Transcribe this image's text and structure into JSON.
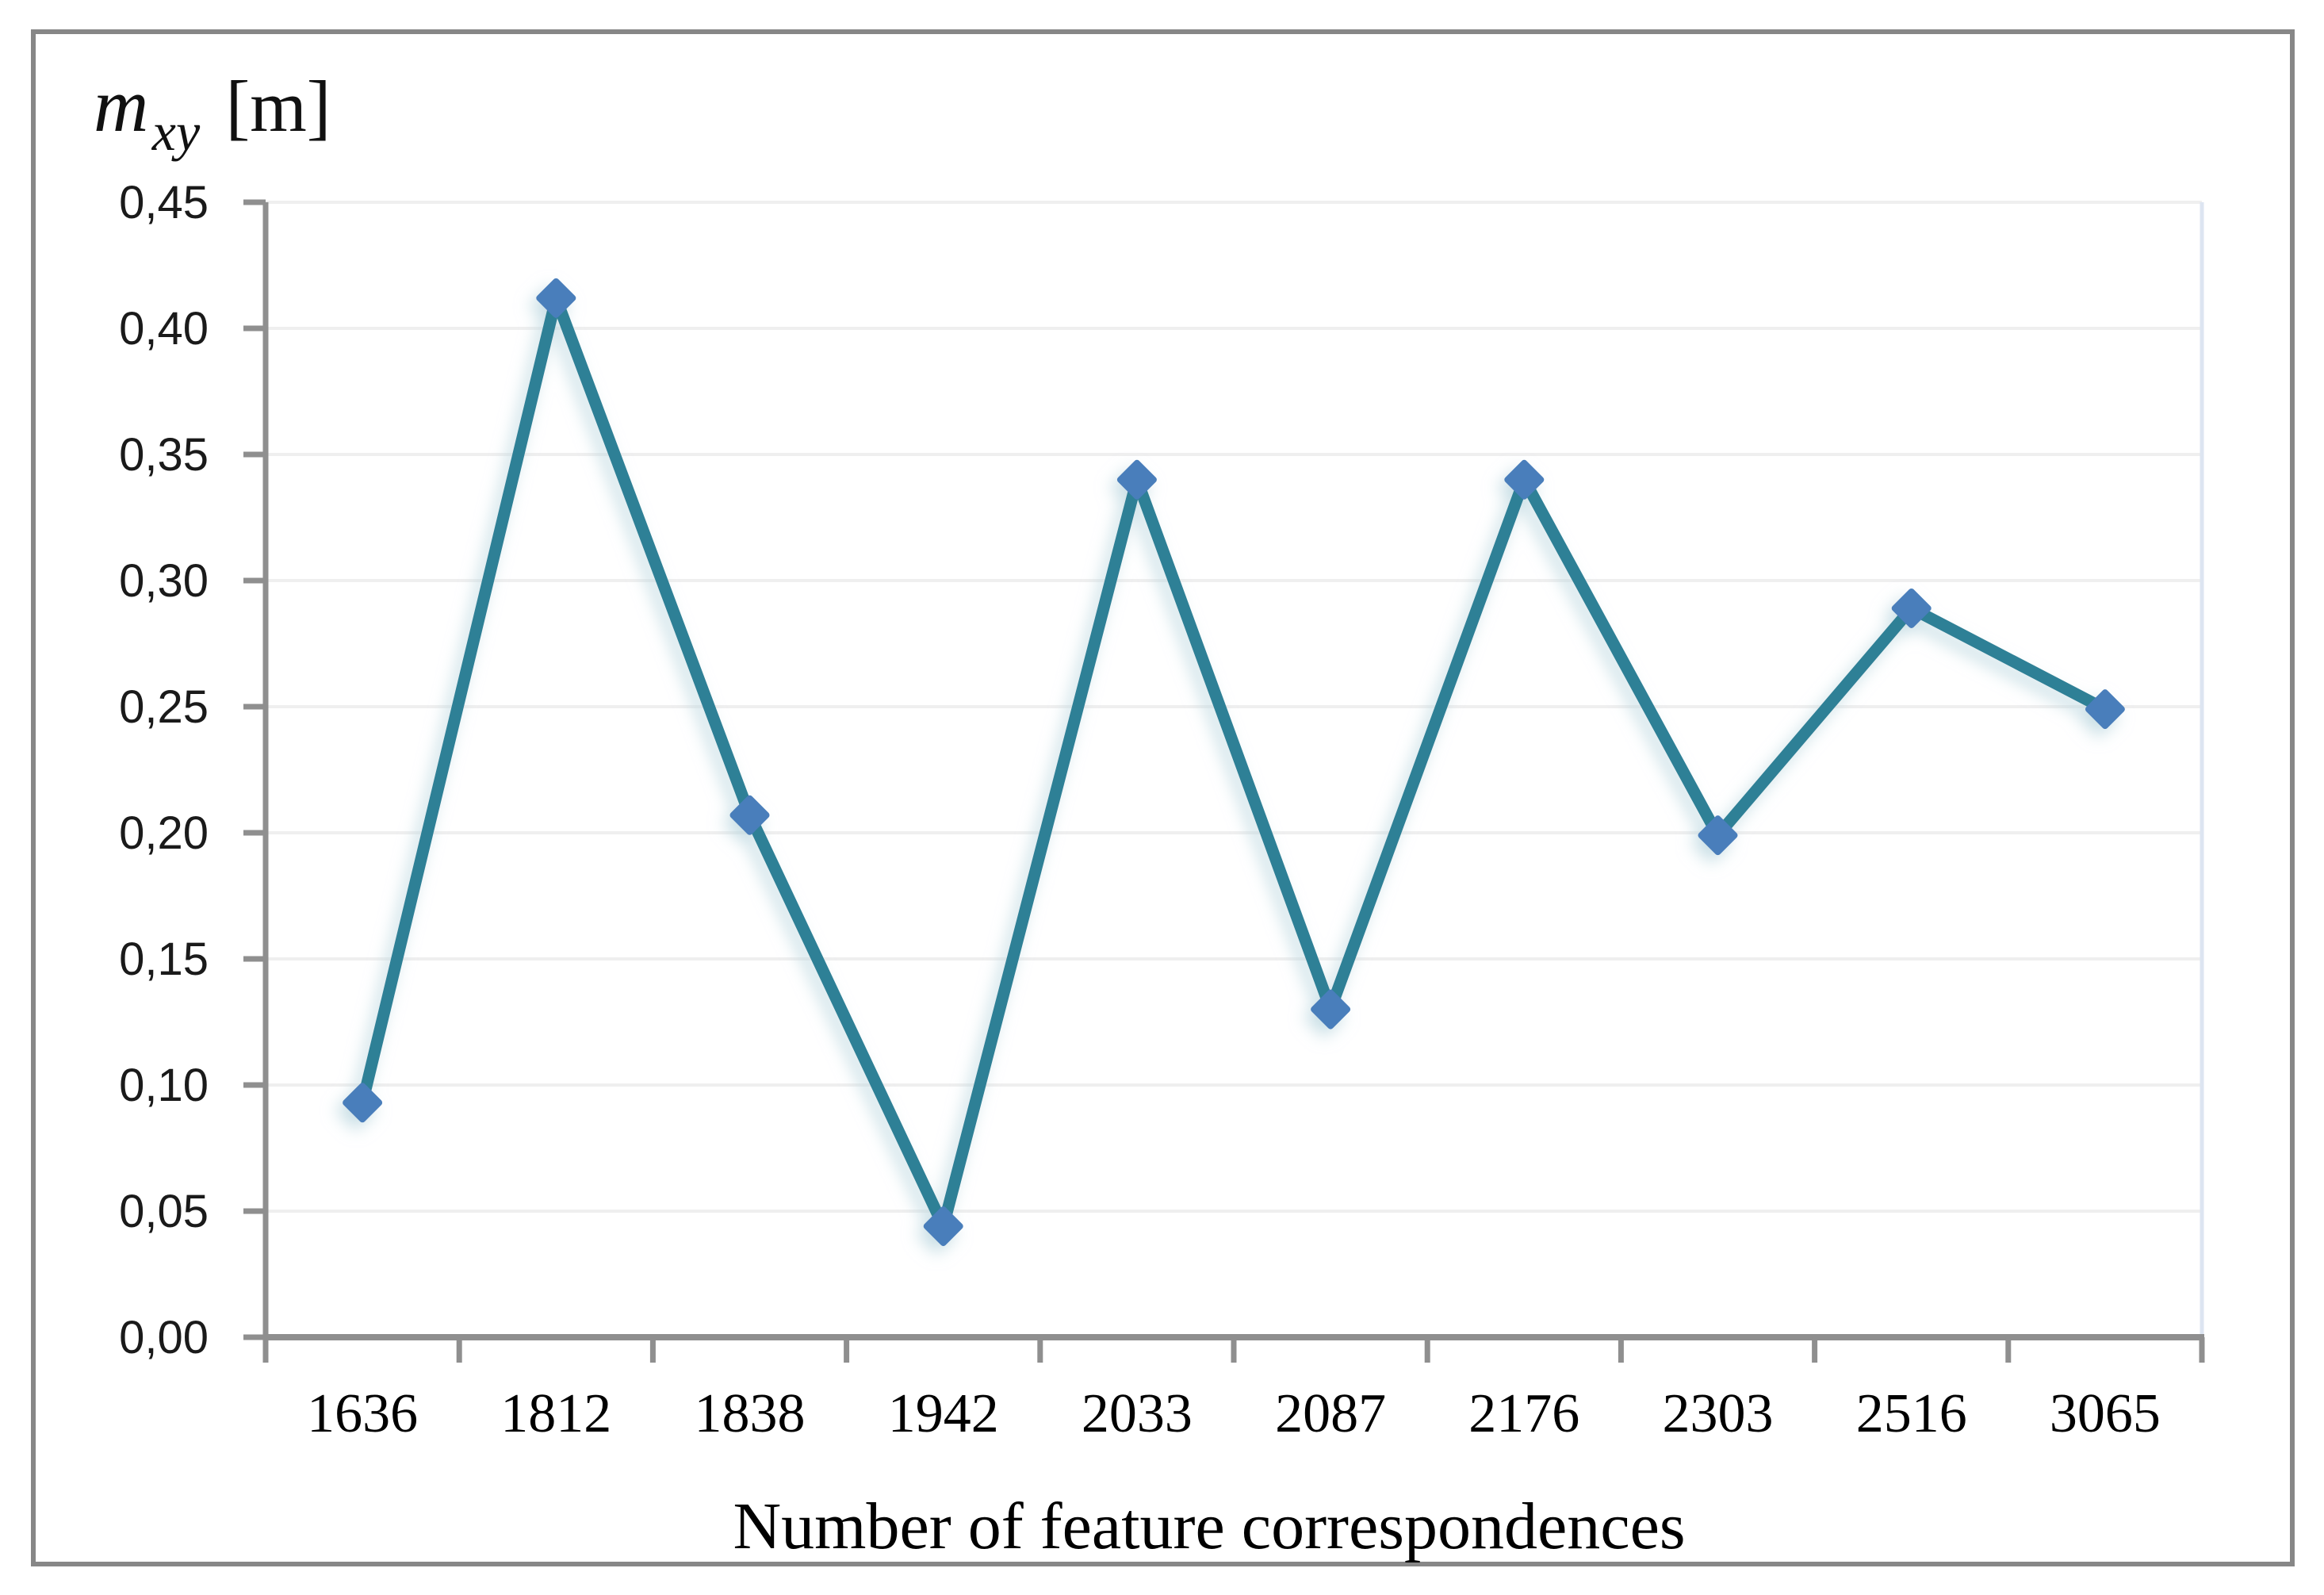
{
  "figure": {
    "title": {
      "var": "m",
      "sub": "xy",
      "unit": "[m]"
    }
  },
  "chart_data": {
    "type": "line",
    "title": "m_xy [m]",
    "xlabel": "Number of feature correspondences",
    "ylabel": "m_xy [m]",
    "categories": [
      "1636",
      "1812",
      "1838",
      "1942",
      "2033",
      "2087",
      "2176",
      "2303",
      "2516",
      "3065"
    ],
    "series": [
      {
        "name": "m_xy",
        "values": [
          0.093,
          0.412,
          0.207,
          0.044,
          0.34,
          0.13,
          0.34,
          0.199,
          0.289,
          0.249
        ]
      }
    ],
    "ylim": [
      0.0,
      0.45
    ],
    "ytick_step": 0.05,
    "ytick_labels": [
      "0,00",
      "0,05",
      "0,10",
      "0,15",
      "0,20",
      "0,25",
      "0,30",
      "0,35",
      "0,40",
      "0,45"
    ],
    "decimal_separator": ",",
    "grid": true,
    "legend": "none",
    "marker": "diamond",
    "colors": {
      "line": "#2d8096",
      "marker": "#4a7ebb",
      "glow": "#b7d5de",
      "gridline": "#efefef",
      "axis": "#8f8f8f",
      "plot_right_border": "#dde5f1",
      "frame": "#878787",
      "text": "#1a1a1a"
    }
  }
}
